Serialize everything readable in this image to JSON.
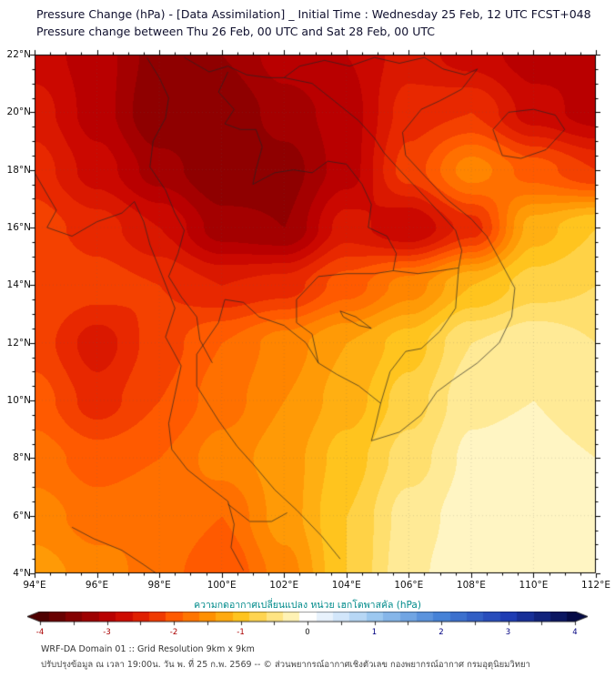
{
  "header": {
    "title_line1": "Pressure Change (hPa) - [Data Assimilation] _ Initial Time : Wednesday 25 Feb, 12 UTC FCST+048",
    "title_line2": "Pressure change between Thu 26 Feb, 00 UTC and Sat 28 Feb, 00 UTC"
  },
  "chart_data": {
    "type": "heatmap",
    "title": "Pressure Change (hPa) - [Data Assimilation]",
    "units": "hPa",
    "lon_range": [
      94,
      112
    ],
    "lat_range": [
      4,
      22
    ],
    "value_range": [
      -4,
      4
    ],
    "contour_interval": 0.2,
    "x_tick_values": [
      94,
      96,
      98,
      100,
      102,
      104,
      106,
      108,
      110,
      112
    ],
    "x_ticks": [
      "94°E",
      "96°E",
      "98°E",
      "100°E",
      "102°E",
      "104°E",
      "106°E",
      "108°E",
      "110°E",
      "112°E"
    ],
    "y_tick_values": [
      22,
      20,
      18,
      16,
      14,
      12,
      10,
      8,
      6,
      4
    ],
    "y_ticks": [
      "22°N",
      "20°N",
      "18°N",
      "16°N",
      "14°N",
      "12°N",
      "10°N",
      "8°N",
      "6°N",
      "4°N"
    ],
    "grid_lons": [
      94,
      96,
      98,
      100,
      102,
      104,
      106,
      108,
      110,
      112
    ],
    "grid_lats": [
      22,
      20,
      18,
      16,
      14,
      12,
      10,
      8,
      6,
      4
    ],
    "values": [
      [
        -2.8,
        -3.0,
        -3.4,
        -3.3,
        -3.0,
        -2.9,
        -2.6,
        -2.8,
        -3.0,
        -2.9
      ],
      [
        -2.6,
        -3.0,
        -3.5,
        -3.5,
        -3.2,
        -3.0,
        -2.4,
        -2.3,
        -2.8,
        -3.0
      ],
      [
        -2.4,
        -2.8,
        -3.2,
        -3.5,
        -3.4,
        -3.0,
        -2.2,
        -1.6,
        -2.0,
        -2.3
      ],
      [
        -2.2,
        -2.4,
        -2.7,
        -3.2,
        -3.3,
        -2.6,
        -2.9,
        -2.4,
        -1.2,
        -0.9
      ],
      [
        -2.1,
        -2.2,
        -2.3,
        -2.5,
        -2.4,
        -2.0,
        -1.6,
        -1.1,
        -0.8,
        -0.7
      ],
      [
        -2.2,
        -2.6,
        -2.2,
        -1.9,
        -1.6,
        -1.3,
        -1.0,
        -0.5,
        -0.35,
        -0.5
      ],
      [
        -2.0,
        -2.4,
        -2.1,
        -1.8,
        -1.5,
        -1.2,
        -0.8,
        -0.35,
        -0.3,
        -0.45
      ],
      [
        -1.8,
        -2.0,
        -1.9,
        -1.6,
        -1.4,
        -1.0,
        -0.6,
        -0.25,
        -0.2,
        -0.3
      ],
      [
        -1.6,
        -1.8,
        -1.7,
        -1.9,
        -1.4,
        -0.9,
        -0.4,
        -0.2,
        -0.15,
        -0.25
      ],
      [
        -1.4,
        -1.6,
        -1.8,
        -2.1,
        -1.6,
        -0.9,
        -0.35,
        -0.15,
        -0.1,
        -0.2
      ]
    ],
    "colormap": [
      {
        "v": -4.0,
        "c": "#4f0000"
      },
      {
        "v": -3.4,
        "c": "#8f0000"
      },
      {
        "v": -2.9,
        "c": "#c40000"
      },
      {
        "v": -2.4,
        "c": "#e82800"
      },
      {
        "v": -2.0,
        "c": "#ff5a00"
      },
      {
        "v": -1.5,
        "c": "#ff9000"
      },
      {
        "v": -1.0,
        "c": "#ffc41e"
      },
      {
        "v": -0.6,
        "c": "#ffdf6e"
      },
      {
        "v": -0.25,
        "c": "#fff2b4"
      },
      {
        "v": 0.0,
        "c": "#ffffff"
      },
      {
        "v": 0.5,
        "c": "#d2e6fa"
      },
      {
        "v": 1.0,
        "c": "#9cc8f0"
      },
      {
        "v": 2.0,
        "c": "#4682d7"
      },
      {
        "v": 3.0,
        "c": "#1e3cb4"
      },
      {
        "v": 4.0,
        "c": "#050a46"
      }
    ],
    "colorbar": {
      "label": "ความกดอากาศเปลี่ยนแปลง หน่วย เฮกโตพาสคัล (hPa)",
      "min": -4,
      "max": 4,
      "tick_labels": [
        "-4",
        "-3",
        "-2",
        "-1",
        "0",
        "1",
        "2",
        "3",
        "4"
      ],
      "tick_values": [
        -4,
        -3,
        -2,
        -1,
        0,
        1,
        2,
        3,
        4
      ],
      "minor_tick_step": 0.5,
      "negative_label_color": "#aa0000",
      "zero_label_color": "#111111",
      "positive_label_color": "#000080"
    },
    "borders": [
      {
        "name": "andaman-coast",
        "points": [
          [
            94.0,
            17.9
          ],
          [
            94.7,
            16.6
          ],
          [
            94.4,
            16.0
          ],
          [
            95.2,
            15.7
          ],
          [
            96.0,
            16.2
          ],
          [
            96.8,
            16.5
          ],
          [
            97.2,
            16.9
          ],
          [
            97.5,
            16.2
          ],
          [
            97.7,
            15.4
          ],
          [
            98.1,
            14.3
          ],
          [
            98.5,
            13.2
          ],
          [
            98.2,
            12.2
          ],
          [
            98.7,
            11.2
          ],
          [
            98.5,
            10.2
          ],
          [
            98.3,
            9.2
          ],
          [
            98.4,
            8.3
          ],
          [
            98.9,
            7.6
          ],
          [
            99.6,
            7.0
          ],
          [
            100.2,
            6.5
          ],
          [
            100.4,
            5.7
          ],
          [
            100.3,
            4.9
          ],
          [
            100.7,
            4.1
          ]
        ]
      },
      {
        "name": "gulf-west-coast",
        "points": [
          [
            100.1,
            13.5
          ],
          [
            99.9,
            12.7
          ],
          [
            99.2,
            11.6
          ],
          [
            99.2,
            10.5
          ],
          [
            99.9,
            9.3
          ],
          [
            100.5,
            8.4
          ],
          [
            101.0,
            7.8
          ],
          [
            101.7,
            6.9
          ],
          [
            102.4,
            6.2
          ],
          [
            103.2,
            5.3
          ],
          [
            103.8,
            4.5
          ]
        ]
      },
      {
        "name": "gulf-north-and-vietnam-coast",
        "points": [
          [
            100.1,
            13.5
          ],
          [
            100.7,
            13.4
          ],
          [
            101.2,
            12.9
          ],
          [
            102.0,
            12.6
          ],
          [
            102.7,
            12.0
          ],
          [
            103.1,
            11.3
          ],
          [
            103.7,
            10.9
          ],
          [
            104.4,
            10.5
          ],
          [
            105.1,
            9.9
          ],
          [
            104.9,
            9.0
          ],
          [
            104.8,
            8.6
          ],
          [
            105.7,
            8.9
          ],
          [
            106.4,
            9.5
          ],
          [
            106.9,
            10.3
          ],
          [
            107.4,
            10.7
          ],
          [
            108.2,
            11.3
          ],
          [
            108.9,
            12.0
          ],
          [
            109.3,
            12.9
          ],
          [
            109.4,
            13.9
          ],
          [
            108.9,
            14.9
          ],
          [
            108.5,
            15.7
          ],
          [
            108.0,
            16.3
          ],
          [
            107.2,
            17.0
          ],
          [
            106.5,
            17.8
          ],
          [
            105.9,
            18.5
          ],
          [
            105.8,
            19.3
          ],
          [
            106.4,
            20.1
          ],
          [
            107.0,
            20.4
          ],
          [
            107.7,
            20.8
          ],
          [
            108.2,
            21.5
          ]
        ]
      },
      {
        "name": "myanmar-thailand-border",
        "points": [
          [
            98.2,
            19.8
          ],
          [
            97.8,
            19.0
          ],
          [
            97.7,
            18.1
          ],
          [
            98.2,
            17.3
          ],
          [
            98.5,
            16.5
          ],
          [
            98.8,
            15.9
          ],
          [
            98.6,
            15.1
          ],
          [
            98.3,
            14.3
          ],
          [
            98.7,
            13.6
          ],
          [
            99.2,
            12.9
          ],
          [
            99.3,
            12.1
          ],
          [
            99.7,
            11.3
          ]
        ]
      },
      {
        "name": "myanmar-china-border",
        "points": [
          [
            97.6,
            21.9
          ],
          [
            98.0,
            21.2
          ],
          [
            98.3,
            20.5
          ],
          [
            98.2,
            19.8
          ]
        ]
      },
      {
        "name": "mekong-thailand-laos",
        "points": [
          [
            100.2,
            21.4
          ],
          [
            99.9,
            20.7
          ],
          [
            100.4,
            20.1
          ],
          [
            100.1,
            19.6
          ],
          [
            100.6,
            19.4
          ],
          [
            101.1,
            19.4
          ],
          [
            101.3,
            18.8
          ],
          [
            101.1,
            18.0
          ],
          [
            101.0,
            17.5
          ],
          [
            101.7,
            17.9
          ],
          [
            102.3,
            18.0
          ],
          [
            102.9,
            17.9
          ],
          [
            103.4,
            18.3
          ],
          [
            104.0,
            18.2
          ],
          [
            104.5,
            17.5
          ],
          [
            104.8,
            16.8
          ],
          [
            104.7,
            16.0
          ],
          [
            105.3,
            15.7
          ],
          [
            105.6,
            15.1
          ],
          [
            105.5,
            14.5
          ]
        ]
      },
      {
        "name": "thailand-cambodia-border",
        "points": [
          [
            102.4,
            13.5
          ],
          [
            103.1,
            14.3
          ],
          [
            104.0,
            14.4
          ],
          [
            104.9,
            14.4
          ],
          [
            105.5,
            14.5
          ]
        ]
      },
      {
        "name": "cambodia-coastal-border",
        "points": [
          [
            102.4,
            13.5
          ],
          [
            102.4,
            12.7
          ],
          [
            102.9,
            12.3
          ],
          [
            103.1,
            11.3
          ]
        ]
      },
      {
        "name": "laos-vietnam-border",
        "points": [
          [
            102.0,
            21.2
          ],
          [
            102.9,
            21.0
          ],
          [
            103.6,
            20.4
          ],
          [
            104.4,
            19.7
          ],
          [
            104.9,
            19.1
          ],
          [
            105.2,
            18.6
          ],
          [
            105.7,
            18.0
          ],
          [
            106.4,
            17.2
          ],
          [
            107.0,
            16.5
          ],
          [
            107.5,
            15.9
          ],
          [
            107.7,
            15.2
          ],
          [
            107.6,
            14.6
          ]
        ]
      },
      {
        "name": "laos-cambodia-border",
        "points": [
          [
            105.5,
            14.5
          ],
          [
            106.3,
            14.4
          ],
          [
            107.0,
            14.5
          ],
          [
            107.6,
            14.6
          ]
        ]
      },
      {
        "name": "vietnam-cambodia-border",
        "points": [
          [
            107.6,
            14.6
          ],
          [
            107.5,
            13.2
          ],
          [
            107.0,
            12.4
          ],
          [
            106.4,
            11.8
          ],
          [
            105.9,
            11.7
          ],
          [
            105.4,
            11.0
          ],
          [
            105.1,
            9.9
          ]
        ]
      },
      {
        "name": "china-border",
        "points": [
          [
            98.8,
            21.9
          ],
          [
            99.6,
            21.4
          ],
          [
            100.2,
            21.6
          ],
          [
            100.8,
            21.3
          ],
          [
            101.5,
            21.2
          ],
          [
            102.0,
            21.2
          ],
          [
            102.5,
            21.6
          ],
          [
            103.3,
            21.8
          ],
          [
            104.1,
            21.6
          ],
          [
            104.9,
            21.9
          ],
          [
            105.7,
            21.7
          ],
          [
            106.5,
            21.9
          ],
          [
            107.1,
            21.5
          ],
          [
            107.8,
            21.3
          ],
          [
            108.2,
            21.5
          ]
        ]
      },
      {
        "name": "hainan-island",
        "points": [
          [
            108.7,
            19.4
          ],
          [
            109.2,
            20.0
          ],
          [
            110.0,
            20.1
          ],
          [
            110.7,
            19.9
          ],
          [
            111.0,
            19.4
          ],
          [
            110.4,
            18.7
          ],
          [
            109.6,
            18.4
          ],
          [
            109.0,
            18.5
          ],
          [
            108.7,
            19.4
          ]
        ]
      },
      {
        "name": "tonle-sap-lake",
        "points": [
          [
            103.8,
            13.1
          ],
          [
            104.3,
            12.9
          ],
          [
            104.8,
            12.5
          ],
          [
            104.4,
            12.6
          ],
          [
            103.9,
            12.9
          ],
          [
            103.8,
            13.1
          ]
        ]
      },
      {
        "name": "thailand-malaysia-border",
        "points": [
          [
            100.2,
            6.4
          ],
          [
            100.9,
            5.8
          ],
          [
            101.6,
            5.8
          ],
          [
            102.1,
            6.1
          ]
        ]
      },
      {
        "name": "sumatra-coast",
        "points": [
          [
            95.2,
            5.6
          ],
          [
            95.9,
            5.2
          ],
          [
            96.8,
            4.8
          ],
          [
            97.5,
            4.3
          ],
          [
            97.9,
            4.0
          ]
        ]
      }
    ]
  },
  "footer": {
    "line1": "WRF-DA Domain 01 :: Grid Resolution 9km x 9km",
    "line2": "ปรับปรุงข้อมูล ณ เวลา 19:00น. วัน พ. ที่ 25 ก.พ. 2569 -- © ส่วนพยากรณ์อากาศเชิงตัวเลข กองพยากรณ์อากาศ กรมอุตุนิยมวิทยา"
  }
}
